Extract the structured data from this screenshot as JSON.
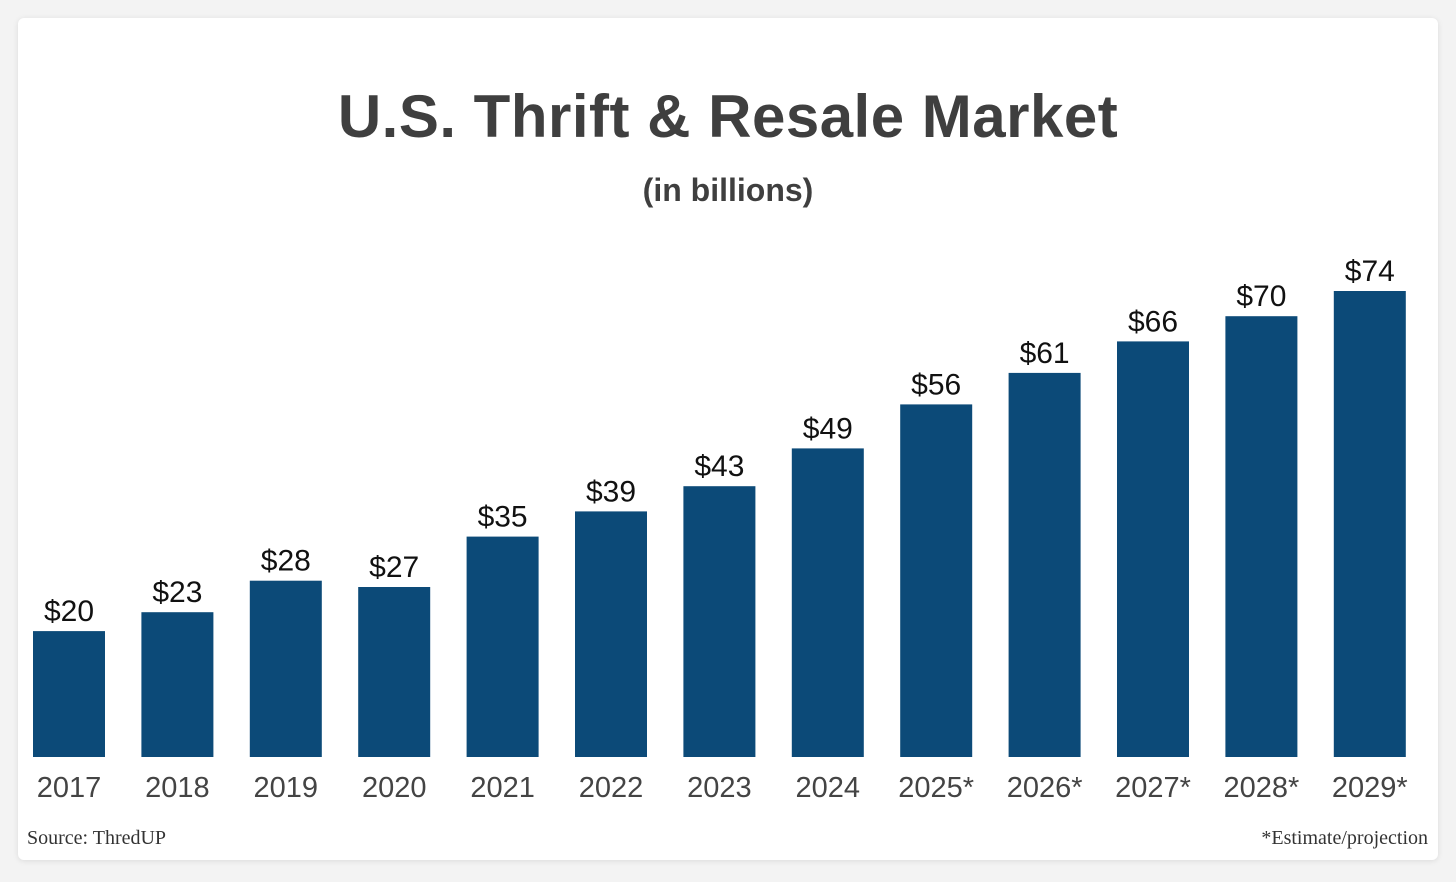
{
  "chart_data": {
    "type": "bar",
    "title": "U.S. Thrift & Resale Market",
    "subtitle": "(in billions)",
    "categories": [
      "2017",
      "2018",
      "2019",
      "2020",
      "2021",
      "2022",
      "2023",
      "2024",
      "2025*",
      "2026*",
      "2027*",
      "2028*",
      "2029*"
    ],
    "values": [
      20,
      23,
      28,
      27,
      35,
      39,
      43,
      49,
      56,
      61,
      66,
      70,
      74
    ],
    "data_labels": [
      "$20",
      "$23",
      "$28",
      "$27",
      "$35",
      "$39",
      "$43",
      "$49",
      "$56",
      "$61",
      "$66",
      "$70",
      "$74"
    ],
    "xlabel": "",
    "ylabel": "",
    "ylim": [
      0,
      74
    ],
    "grid": false,
    "bar_color": "#0c4a78"
  },
  "footer": {
    "source": "Source: ThredUP",
    "note": "*Estimate/projection"
  }
}
